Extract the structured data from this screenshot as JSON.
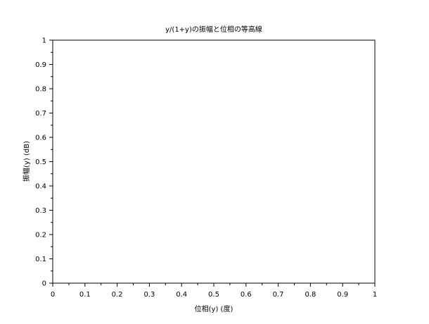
{
  "chart_data": {
    "type": "line",
    "title": "y/(1+y)の振幅と位相の等高線",
    "xlabel": "位相(y) (度)",
    "ylabel": "振幅(y) (dB)",
    "xlim": [
      0,
      1
    ],
    "ylim": [
      0,
      1
    ],
    "x_ticks": [
      "0",
      "0.1",
      "0.2",
      "0.3",
      "0.4",
      "0.5",
      "0.6",
      "0.7",
      "0.8",
      "0.9",
      "1"
    ],
    "y_ticks": [
      "0",
      "0.1",
      "0.2",
      "0.3",
      "0.4",
      "0.5",
      "0.6",
      "0.7",
      "0.8",
      "0.9",
      "1"
    ],
    "grid": false,
    "series": []
  }
}
